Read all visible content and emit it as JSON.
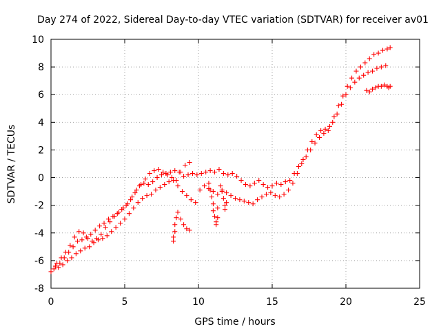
{
  "chart_data": {
    "type": "scatter",
    "title": "Day 274 of 2022, Sidereal Day-to-day VTEC variation (SDTVAR) for receiver av01",
    "xlabel": "GPS time / hours",
    "ylabel": "SDTVAR / TECUs",
    "xlim": [
      0,
      25
    ],
    "ylim": [
      -8,
      10
    ],
    "xticks": [
      "0",
      "5",
      "10",
      "15",
      "20",
      "25"
    ],
    "yticks": [
      "-8",
      "-6",
      "-4",
      "-2",
      "0",
      "2",
      "4",
      "6",
      "8",
      "10"
    ],
    "grid": true,
    "marker": "plus",
    "series": [
      {
        "name": "SDTVAR",
        "color": "#ff0000",
        "x": [
          0.0,
          0.3,
          0.6,
          0.9,
          1.2,
          1.5,
          1.8,
          2.1,
          2.4,
          2.7,
          3.0,
          3.3,
          3.6,
          3.9,
          4.2,
          4.5,
          4.8,
          5.1,
          5.4,
          5.7,
          6.0,
          6.3,
          6.6,
          6.9,
          7.2,
          7.5,
          7.8,
          8.1,
          8.4,
          8.7,
          9.0,
          9.3,
          9.6,
          9.9,
          10.2,
          10.5,
          10.8,
          11.1,
          11.4,
          11.7,
          12.0,
          12.3,
          12.6,
          12.9,
          13.2,
          13.5,
          13.8,
          14.1,
          14.4,
          14.7,
          15.0,
          15.3,
          15.6,
          15.9,
          16.2,
          16.5,
          16.8,
          17.1,
          17.4,
          17.7,
          18.0,
          18.3,
          18.6,
          18.9,
          19.2,
          19.5,
          19.8,
          20.1,
          20.4,
          20.7,
          21.0,
          21.3,
          21.6,
          21.9,
          22.2,
          22.5,
          22.8,
          23.0,
          0.2,
          0.5,
          0.8,
          1.1,
          1.4,
          1.7,
          2.0,
          2.3,
          2.6,
          2.9,
          3.2,
          3.5,
          3.8,
          4.1,
          4.4,
          4.7,
          5.0,
          5.3,
          5.6,
          5.9,
          6.2,
          6.5,
          6.8,
          7.1,
          7.4,
          7.7,
          8.0,
          8.3,
          8.6,
          8.9,
          9.2,
          9.5,
          9.8,
          10.1,
          10.4,
          10.7,
          11.0,
          11.3,
          11.6,
          11.9,
          12.2,
          12.5,
          12.8,
          13.1,
          13.4,
          13.7,
          14.0,
          14.3,
          14.6,
          14.9,
          15.2,
          15.5,
          15.8,
          16.1,
          16.4,
          16.7,
          17.0,
          17.3,
          17.6,
          17.9,
          18.2,
          18.5,
          18.8,
          19.1,
          19.4,
          19.7,
          20.0,
          20.3,
          20.6,
          20.9,
          21.2,
          21.5,
          21.8,
          22.1,
          22.4,
          22.7,
          0.4,
          0.7,
          1.0,
          1.3,
          1.6,
          1.9,
          2.2,
          2.5,
          2.8,
          3.1,
          3.4,
          3.7,
          4.0,
          4.3,
          4.6,
          4.9,
          5.2,
          5.5,
          5.8,
          6.1,
          6.4,
          6.7,
          7.0,
          7.3,
          7.6,
          7.9,
          8.2,
          8.5,
          8.8,
          9.1,
          9.4,
          8.3,
          8.3,
          8.4,
          8.4,
          8.5,
          8.6,
          8.8,
          9.0,
          9.2,
          9.4,
          10.7,
          10.8,
          10.9,
          11.0,
          11.0,
          11.1,
          11.2,
          11.2,
          11.3,
          11.3,
          11.5,
          11.6,
          11.7,
          11.8,
          11.8,
          11.9,
          21.4,
          21.6,
          21.8,
          22.0,
          22.2,
          22.4,
          22.6,
          22.8,
          22.9,
          23.0
        ],
        "y": [
          -6.8,
          -6.4,
          -6.2,
          -5.8,
          -5.4,
          -5.0,
          -4.6,
          -4.5,
          -4.3,
          -4.1,
          -3.8,
          -3.5,
          -3.3,
          -3.0,
          -2.8,
          -2.6,
          -2.3,
          -2.0,
          -1.6,
          -1.1,
          -0.6,
          -0.4,
          -0.5,
          -0.3,
          0.0,
          0.2,
          0.3,
          0.4,
          0.5,
          0.4,
          0.1,
          0.2,
          0.3,
          0.2,
          0.3,
          0.4,
          0.5,
          0.4,
          0.6,
          0.3,
          0.2,
          0.3,
          0.1,
          -0.2,
          -0.5,
          -0.6,
          -0.4,
          -0.2,
          -0.5,
          -0.7,
          -0.6,
          -0.4,
          -0.5,
          -0.3,
          -0.2,
          0.3,
          0.8,
          1.3,
          2.0,
          2.6,
          3.1,
          3.4,
          3.5,
          3.7,
          4.4,
          5.2,
          5.9,
          6.6,
          7.2,
          7.7,
          8.0,
          8.3,
          8.6,
          8.9,
          9.0,
          9.2,
          9.3,
          9.4,
          -6.6,
          -6.5,
          -6.3,
          -6.0,
          -5.8,
          -5.5,
          -5.3,
          -5.1,
          -5.0,
          -4.7,
          -4.5,
          -4.4,
          -4.2,
          -3.9,
          -3.6,
          -3.3,
          -3.0,
          -2.6,
          -2.2,
          -1.8,
          -1.5,
          -1.3,
          -1.2,
          -0.9,
          -0.7,
          -0.5,
          -0.3,
          -0.2,
          -0.6,
          -1.0,
          -1.3,
          -1.6,
          -1.8,
          -0.9,
          -0.6,
          -0.8,
          -1.0,
          -1.2,
          -0.9,
          -1.1,
          -1.3,
          -1.5,
          -1.6,
          -1.7,
          -1.8,
          -1.9,
          -1.6,
          -1.4,
          -1.2,
          -1.1,
          -1.3,
          -1.4,
          -1.2,
          -0.9,
          -0.4,
          0.3,
          1.0,
          1.5,
          2.0,
          2.5,
          2.9,
          3.2,
          3.4,
          4.0,
          4.6,
          5.3,
          6.0,
          6.5,
          6.9,
          7.2,
          7.4,
          7.6,
          7.7,
          7.9,
          8.0,
          8.1,
          -6.2,
          -5.8,
          -5.4,
          -4.9,
          -4.3,
          -3.9,
          -4.0,
          -4.4,
          -4.6,
          -4.4,
          -4.1,
          -3.6,
          -3.2,
          -2.8,
          -2.5,
          -2.2,
          -1.9,
          -1.4,
          -0.9,
          -0.5,
          -0.1,
          0.3,
          0.5,
          0.6,
          0.4,
          0.2,
          0.0,
          -0.2,
          0.4,
          0.9,
          1.1,
          -4.6,
          -4.3,
          -3.9,
          -3.4,
          -2.9,
          -2.5,
          -3.0,
          -3.4,
          -3.7,
          -3.8,
          -0.4,
          -0.9,
          -1.4,
          -1.9,
          -2.4,
          -2.8,
          -3.2,
          -3.4,
          -2.9,
          -2.2,
          -0.6,
          -1.0,
          -1.5,
          -2.0,
          -2.3,
          -1.8,
          6.3,
          6.2,
          6.4,
          6.5,
          6.6,
          6.6,
          6.7,
          6.6,
          6.5,
          6.6
        ]
      }
    ]
  }
}
